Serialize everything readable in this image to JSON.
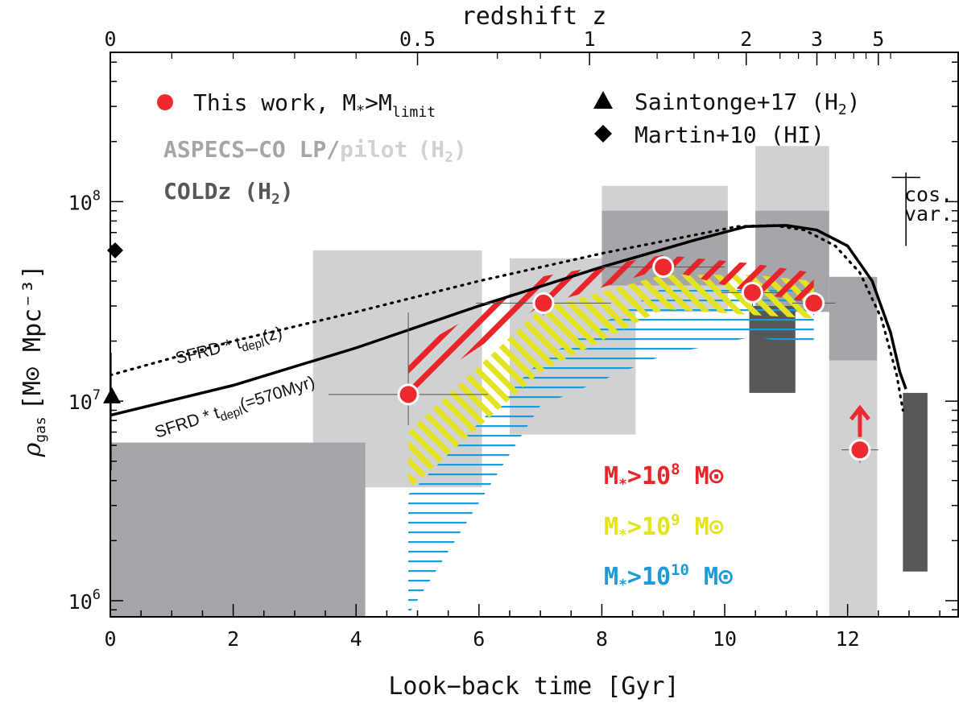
{
  "chart_data": {
    "type": "scatter",
    "xlabel": "Look−back time [Gyr]",
    "ylabel": "ρ",
    "ylabel_sub": "gas",
    "ylabel_units": "[M⊙ Mpc⁻³]",
    "top_axis_label": "redshift z",
    "xlim": [
      0,
      13.8
    ],
    "ylim": [
      830000,
      560000000
    ],
    "y_scale": "log",
    "x_ticks": [
      "0",
      "2",
      "4",
      "6",
      "8",
      "10",
      "12"
    ],
    "y_ticks": [
      {
        "base": "10",
        "exp": "6",
        "value": 1000000
      },
      {
        "base": "10",
        "exp": "7",
        "value": 10000000
      },
      {
        "base": "10",
        "exp": "8",
        "value": 100000000
      }
    ],
    "top_ticks": [
      {
        "label": "0",
        "t": 0.0
      },
      {
        "label": "0.5",
        "t": 5.0
      },
      {
        "label": "1",
        "t": 7.8
      },
      {
        "label": "2",
        "t": 10.35
      },
      {
        "label": "3",
        "t": 11.5
      },
      {
        "label": "5",
        "t": 12.5
      }
    ],
    "colors": {
      "aspecs_lp": "#d0d1d3",
      "aspecs_pilot": "#a5a6a9",
      "coldz": "#565759",
      "this_work": "#ee2a2e",
      "m8": "#e8252a",
      "m9": "#e3e321",
      "m10": "#1e9ad6"
    },
    "legend": {
      "this_work_prefix": "This work, M",
      "this_work_sub1": "*",
      "this_work_mid": ">M",
      "this_work_sub2": "limit",
      "aspecs_lp": "ASPECS−CO LP/",
      "aspecs_pilot": "pilot",
      "aspecs_h2": "(H",
      "aspecs_h2_sub": "2",
      "aspecs_h2_end": ")",
      "coldz": "COLDz",
      "coldz_h2": "(H",
      "coldz_h2_sub": "2",
      "coldz_h2_end": ")",
      "saintonge": "Saintonge+17 (H",
      "saintonge_sub": "2",
      "saintonge_end": ")",
      "martin": "Martin+10 (HI)",
      "cos_var_1": "cos.",
      "cos_var_2": "var."
    },
    "mass_labels": [
      {
        "m": "M",
        "sub": "*",
        "gt": ">10",
        "exp": "8",
        "unit": " M⊙",
        "color": "#e8252a"
      },
      {
        "m": "M",
        "sub": "*",
        "gt": ">10",
        "exp": "9",
        "unit": " M⊙",
        "color": "#e3e321"
      },
      {
        "m": "M",
        "sub": "*",
        "gt": ">10",
        "exp": "10",
        "unit": " M⊙",
        "color": "#1e9ad6"
      }
    ],
    "sfrd_labels": {
      "dotted_a": "SFRD",
      "dotted_b": " * t",
      "dotted_sub": "depl",
      "dotted_c": "(z)",
      "solid_a": "SFRD",
      "solid_b": " * t",
      "solid_sub": "depl",
      "solid_c": "(=570Myr)"
    },
    "aspecs_boxes": [
      {
        "name": "lp",
        "x": [
          3.3,
          6.05
        ],
        "y": [
          3700000,
          57000000
        ]
      },
      {
        "name": "lp",
        "x": [
          6.5,
          8.55
        ],
        "y": [
          6800000,
          52000000
        ]
      },
      {
        "name": "lp",
        "x": [
          8.0,
          10.05
        ],
        "y": [
          28000000,
          120000000
        ]
      },
      {
        "name": "lp",
        "x": [
          10.5,
          11.7
        ],
        "y": [
          36000000,
          190000000
        ]
      },
      {
        "name": "lp",
        "x": [
          11.7,
          12.48
        ],
        "y": [
          830000,
          16000000
        ]
      },
      {
        "name": "pilot",
        "x": [
          0.0,
          4.15
        ],
        "y": [
          830000,
          6200000
        ]
      },
      {
        "name": "pilot",
        "x": [
          8.0,
          10.05
        ],
        "y": [
          38000000,
          90000000
        ]
      },
      {
        "name": "pilot",
        "x": [
          10.5,
          11.7
        ],
        "y": [
          28000000,
          90000000
        ]
      },
      {
        "name": "pilot",
        "x": [
          11.7,
          12.48
        ],
        "y": [
          16000000,
          42000000
        ]
      }
    ],
    "coldz_boxes": [
      {
        "x": [
          10.4,
          11.15
        ],
        "y": [
          11000000,
          30000000
        ]
      },
      {
        "x": [
          12.9,
          13.3
        ],
        "y": [
          1400000,
          11000000
        ]
      }
    ],
    "hatch_m8": [
      [
        4.85,
        10800000
      ],
      [
        7.0,
        30000000
      ],
      [
        9.0,
        46000000
      ],
      [
        10.45,
        35000000
      ],
      [
        11.45,
        31000000
      ],
      [
        11.45,
        44000000
      ],
      [
        10.45,
        49000000
      ],
      [
        9.0,
        54000000
      ],
      [
        7.0,
        42000000
      ],
      [
        4.85,
        17500000
      ]
    ],
    "hatch_m9": [
      [
        4.85,
        3600000
      ],
      [
        7.0,
        14000000
      ],
      [
        9.0,
        29000000
      ],
      [
        10.45,
        27000000
      ],
      [
        11.45,
        26000000
      ],
      [
        11.45,
        40000000
      ],
      [
        10.45,
        43000000
      ],
      [
        9.0,
        43000000
      ],
      [
        7.0,
        29000000
      ],
      [
        4.85,
        7000000
      ]
    ],
    "hatch_m10": [
      [
        4.85,
        850000
      ],
      [
        7.0,
        9500000
      ],
      [
        9.0,
        17000000
      ],
      [
        10.45,
        21000000
      ],
      [
        11.45,
        19000000
      ],
      [
        11.45,
        37000000
      ],
      [
        10.45,
        37500000
      ],
      [
        9.0,
        37000000
      ],
      [
        7.0,
        16000000
      ],
      [
        4.85,
        3400000
      ]
    ],
    "this_work": [
      {
        "x": 4.85,
        "y": 10800000,
        "xerr": [
          1.3,
          1.3
        ],
        "yerr": [
          3200000,
          17000000
        ]
      },
      {
        "x": 7.05,
        "y": 31000000,
        "xerr": [
          1.1,
          1.1
        ],
        "yerr": [
          4000000,
          4000000
        ]
      },
      {
        "x": 9.0,
        "y": 47000000,
        "xerr": [
          1.0,
          1.0
        ],
        "yerr": [
          5000000,
          5000000
        ]
      },
      {
        "x": 10.45,
        "y": 35000000,
        "xerr": [
          0.5,
          0.5
        ],
        "yerr": [
          5000000,
          5000000
        ]
      },
      {
        "x": 11.45,
        "y": 31000000,
        "xerr": [
          0.35,
          0.35
        ],
        "yerr": [
          4000000,
          4000000
        ]
      },
      {
        "x": 12.2,
        "y": 5700000,
        "xerr": [
          0.3,
          0.3
        ],
        "yerr": [
          800000,
          800000
        ],
        "lower_limit": true
      }
    ],
    "saintonge": {
      "x": 0.0,
      "y": 10500000,
      "yerr": [
        6000000,
        7000000
      ]
    },
    "martin": {
      "x": 0.0,
      "y": 57000000
    },
    "model_dotted": [
      [
        0.0,
        13500000
      ],
      [
        2.0,
        20000000
      ],
      [
        4.0,
        28000000
      ],
      [
        6.0,
        40000000
      ],
      [
        8.0,
        55000000
      ],
      [
        9.5,
        68000000
      ],
      [
        10.2,
        75000000
      ],
      [
        10.8,
        76000000
      ],
      [
        11.3,
        72000000
      ],
      [
        11.8,
        60000000
      ],
      [
        12.2,
        44000000
      ],
      [
        12.55,
        26000000
      ],
      [
        12.8,
        13500000
      ],
      [
        12.9,
        9000000
      ]
    ],
    "model_solid": [
      [
        0.0,
        8500000
      ],
      [
        2.0,
        12000000
      ],
      [
        4.0,
        18500000
      ],
      [
        6.0,
        30000000
      ],
      [
        8.0,
        47000000
      ],
      [
        9.5,
        64000000
      ],
      [
        10.35,
        75000000
      ],
      [
        11.0,
        76000000
      ],
      [
        11.5,
        72000000
      ],
      [
        12.0,
        60000000
      ],
      [
        12.4,
        40000000
      ],
      [
        12.7,
        22000000
      ],
      [
        12.85,
        14000000
      ],
      [
        12.95,
        11500000
      ]
    ],
    "cos_var": {
      "x": 12.95,
      "y": 100000000,
      "yerr": [
        40000000,
        40000000
      ],
      "xerr": [
        0.1,
        0.1
      ]
    }
  }
}
